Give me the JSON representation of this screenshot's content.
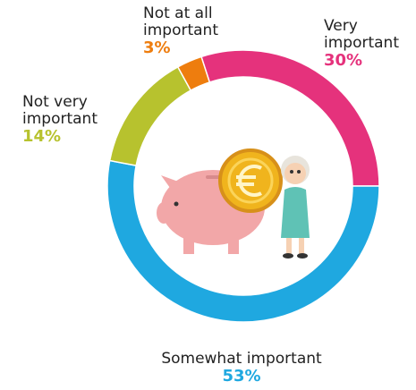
{
  "chart_data": {
    "type": "donut",
    "categories": [
      "Very important",
      "Somewhat important",
      "Not very important",
      "Not at all important"
    ],
    "values": [
      30,
      53,
      14,
      3
    ],
    "value_labels": [
      "30%",
      "53%",
      "14%",
      "3%"
    ],
    "colors": [
      "#e5327c",
      "#1fa8e0",
      "#b7c22e",
      "#ee7d0e"
    ]
  }
}
